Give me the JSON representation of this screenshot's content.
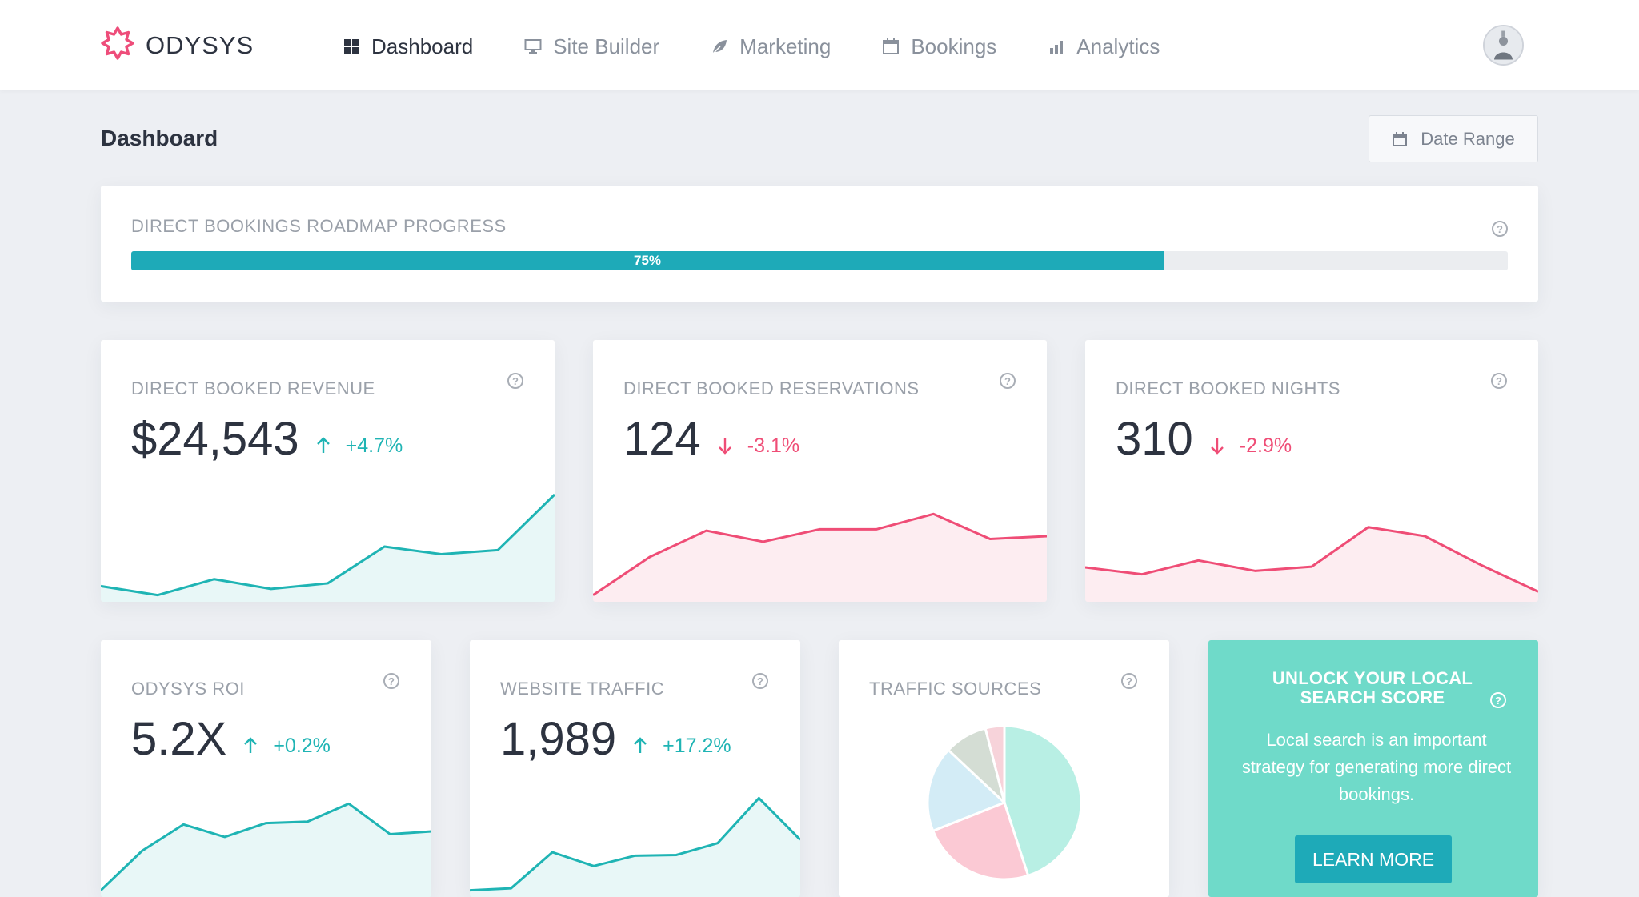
{
  "app": {
    "name": "ODYSYS",
    "brand_color": "#ee4d7a",
    "accent_color": "#1eaab8"
  },
  "nav": {
    "items": [
      {
        "label": "Dashboard",
        "icon": "grid-icon",
        "active": true
      },
      {
        "label": "Site Builder",
        "icon": "monitor-icon",
        "active": false
      },
      {
        "label": "Marketing",
        "icon": "leaf-icon",
        "active": false
      },
      {
        "label": "Bookings",
        "icon": "calendar-icon",
        "active": false
      },
      {
        "label": "Analytics",
        "icon": "bar-chart-icon",
        "active": false
      }
    ]
  },
  "page": {
    "title": "Dashboard",
    "date_range_label": "Date Range"
  },
  "roadmap": {
    "label": "DIRECT BOOKINGS ROADMAP PROGRESS",
    "progress": 0.75,
    "progress_text": "75%"
  },
  "cards": {
    "revenue": {
      "label": "DIRECT BOOKED REVENUE",
      "value": "$24,543",
      "delta": "+4.7%",
      "direction": "up"
    },
    "reservations": {
      "label": "DIRECT BOOKED RESERVATIONS",
      "value": "124",
      "delta": "-3.1%",
      "direction": "down"
    },
    "nights": {
      "label": "DIRECT BOOKED NIGHTS",
      "value": "310",
      "delta": "-2.9%",
      "direction": "down"
    },
    "roi": {
      "label": "ODYSYS ROI",
      "value": "5.2X",
      "delta": "+0.2%",
      "direction": "up"
    },
    "traffic": {
      "label": "WEBSITE TRAFFIC",
      "value": "1,989",
      "delta": "+17.2%",
      "direction": "up"
    },
    "sources": {
      "label": "TRAFFIC SOURCES"
    }
  },
  "promo": {
    "title": "UNLOCK YOUR LOCAL SEARCH SCORE",
    "text": "Local search is an important strategy for generating more direct bookings.",
    "button_label": "LEARN MORE"
  },
  "chart_data": [
    {
      "type": "area",
      "name": "revenue-trend",
      "values": [
        18,
        5,
        28,
        14,
        22,
        75,
        64,
        70,
        150
      ],
      "color": "#1fb4b4"
    },
    {
      "type": "area",
      "name": "reservations-trend",
      "values": [
        5,
        60,
        98,
        82,
        100,
        100,
        122,
        86,
        90
      ],
      "color": "#ef4d76"
    },
    {
      "type": "area",
      "name": "nights-trend",
      "values": [
        45,
        35,
        55,
        40,
        46,
        103,
        90,
        48,
        10
      ],
      "color": "#ef4d76"
    },
    {
      "type": "area",
      "name": "roi-trend",
      "values": [
        5,
        62,
        100,
        82,
        102,
        104,
        130,
        86,
        90
      ],
      "color": "#1fb4b4"
    },
    {
      "type": "area",
      "name": "traffic-trend",
      "values": [
        5,
        8,
        60,
        40,
        55,
        56,
        73,
        138,
        78
      ],
      "color": "#1fb4b4"
    },
    {
      "type": "pie",
      "name": "traffic-sources",
      "values": [
        45,
        24,
        18,
        9,
        4
      ],
      "colors": [
        "#b8efe4",
        "#fbc9d4",
        "#d3ecf6",
        "#d4ddd4",
        "#f7d3da"
      ]
    }
  ]
}
